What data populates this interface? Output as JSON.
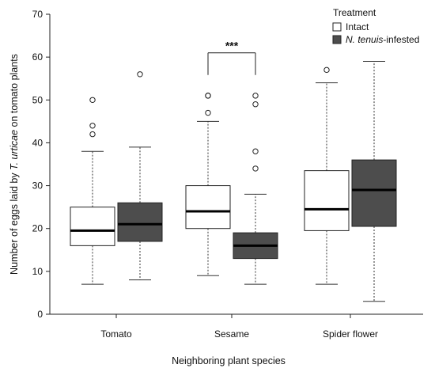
{
  "chart_data": {
    "type": "box",
    "xlabel": "Neighboring plant species",
    "ylabel": {
      "prefix": "Number of eggs laid by ",
      "italic": "T. urticae",
      "suffix": " on tomato plants"
    },
    "ylim": [
      0,
      70
    ],
    "yticks": [
      0,
      10,
      20,
      30,
      40,
      50,
      60,
      70
    ],
    "categories": [
      "Tomato",
      "Sesame",
      "Spider flower"
    ],
    "legend": {
      "title": "Treatment",
      "placement": "top-right",
      "entries": [
        {
          "text": "Intact",
          "italic": "",
          "suffix": "",
          "color": "#ffffff"
        },
        {
          "text": "",
          "italic": "N. tenuis",
          "suffix": "-infested",
          "color": "#4d4d4d"
        }
      ]
    },
    "series": [
      {
        "name": "Intact",
        "color": "#ffffff",
        "boxes": [
          {
            "min": 7,
            "q1": 16,
            "median": 19.5,
            "q3": 25,
            "max": 38,
            "outliers": [
              42,
              44,
              50
            ]
          },
          {
            "min": 9,
            "q1": 20,
            "median": 24,
            "q3": 30,
            "max": 45,
            "outliers": [
              47,
              51,
              51
            ]
          },
          {
            "min": 7,
            "q1": 19.5,
            "median": 24.5,
            "q3": 33.5,
            "max": 54,
            "outliers": [
              57
            ]
          }
        ]
      },
      {
        "name": "N. tenuis-infested",
        "color": "#4d4d4d",
        "boxes": [
          {
            "min": 8,
            "q1": 17,
            "median": 21,
            "q3": 26,
            "max": 39,
            "outliers": [
              56
            ]
          },
          {
            "min": 7,
            "q1": 13,
            "median": 16,
            "q3": 19,
            "max": 28,
            "outliers": [
              34,
              38,
              49,
              51
            ]
          },
          {
            "min": 3,
            "q1": 20.5,
            "median": 29,
            "q3": 36,
            "max": 59,
            "outliers": []
          }
        ]
      }
    ],
    "annotations": [
      {
        "text": "***",
        "category": "Sesame",
        "y": 63
      }
    ]
  }
}
